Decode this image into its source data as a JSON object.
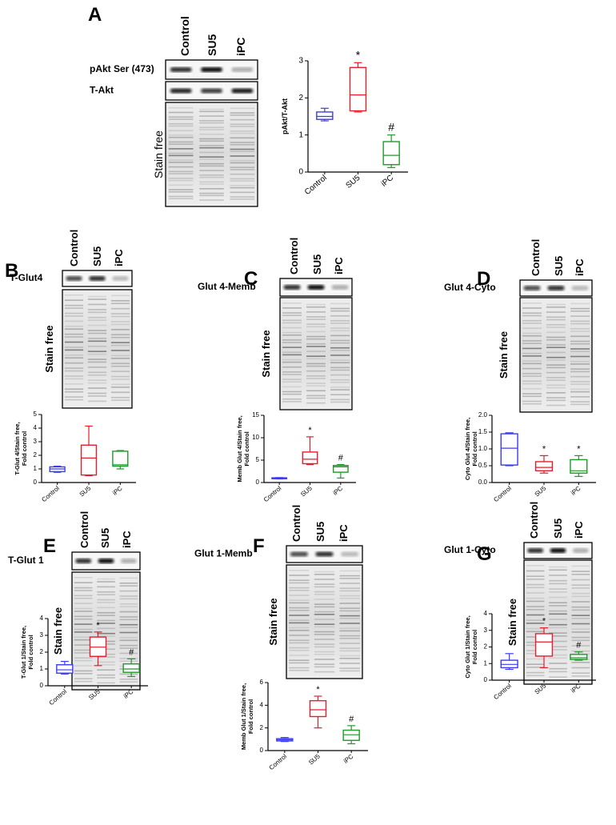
{
  "chart_data": [
    {
      "type": "box",
      "panel": "A",
      "blot": {
        "rows": [
          "pAkt Ser (473)",
          "T-Akt"
        ],
        "stain": "Stain free"
      },
      "ylabel": [
        "pAkt/T-Akt"
      ],
      "categories": [
        "Control",
        "SU5",
        "iPC"
      ],
      "colors": [
        "#3b3bf0",
        "#e51d2c",
        "#1f9a2a"
      ],
      "boxes": [
        {
          "min": 1.38,
          "q1": 1.42,
          "median": 1.5,
          "q3": 1.62,
          "max": 1.72
        },
        {
          "min": 1.62,
          "q1": 1.65,
          "median": 2.08,
          "q3": 2.82,
          "max": 2.95
        },
        {
          "min": 0.12,
          "q1": 0.2,
          "median": 0.45,
          "q3": 0.82,
          "max": 1.0
        }
      ],
      "annotations": [
        null,
        "*",
        "#"
      ],
      "ylim": [
        0,
        3
      ],
      "yticks": [
        0,
        1,
        2,
        3
      ]
    },
    {
      "type": "box",
      "panel": "B",
      "blot": {
        "rows": [
          "T-Glut4"
        ],
        "stain": "Stain free"
      },
      "ylabel": [
        "T-Glut 4/Stain free,",
        "Fold control"
      ],
      "categories": [
        "Control",
        "SU5",
        "iPC"
      ],
      "colors": [
        "#3b3bf0",
        "#e51d2c",
        "#1f9a2a"
      ],
      "boxes": [
        {
          "min": 0.75,
          "q1": 0.8,
          "median": 1.0,
          "q3": 1.15,
          "max": 1.2
        },
        {
          "min": 0.5,
          "q1": 0.55,
          "median": 1.8,
          "q3": 2.75,
          "max": 4.15
        },
        {
          "min": 1.0,
          "q1": 1.2,
          "median": 1.3,
          "q3": 2.3,
          "max": 2.35
        }
      ],
      "annotations": [
        null,
        null,
        null
      ],
      "ylim": [
        0,
        5
      ],
      "yticks": [
        0,
        1,
        2,
        3,
        4,
        5
      ]
    },
    {
      "type": "box",
      "panel": "C",
      "blot": {
        "rows": [
          "Glut 4-Memb"
        ],
        "stain": "Stain free"
      },
      "ylabel": [
        "Memb Glut 4/Stain free,",
        "Fold control"
      ],
      "categories": [
        "Control",
        "SU5",
        "iPC"
      ],
      "colors": [
        "#3b3bf0",
        "#e51d2c",
        "#1f9a2a"
      ],
      "boxes": [
        {
          "min": 0.8,
          "q1": 0.85,
          "median": 0.95,
          "q3": 1.05,
          "max": 1.1
        },
        {
          "min": 4.0,
          "q1": 4.2,
          "median": 5.2,
          "q3": 6.8,
          "max": 10.2
        },
        {
          "min": 1.0,
          "q1": 2.3,
          "median": 3.5,
          "q3": 3.8,
          "max": 4.0
        }
      ],
      "annotations": [
        null,
        "*",
        "#"
      ],
      "ylim": [
        0,
        15
      ],
      "yticks": [
        0,
        5,
        10,
        15
      ]
    },
    {
      "type": "box",
      "panel": "D",
      "blot": {
        "rows": [
          "Glut 4-Cyto"
        ],
        "stain": "Stain free"
      },
      "ylabel": [
        "Cyto Glut 4/Stain free,",
        "Fold control"
      ],
      "categories": [
        "Control",
        "SU5",
        "iPC"
      ],
      "colors": [
        "#3b3bf0",
        "#e51d2c",
        "#1f9a2a"
      ],
      "boxes": [
        {
          "min": 0.5,
          "q1": 0.52,
          "median": 1.02,
          "q3": 1.45,
          "max": 1.48
        },
        {
          "min": 0.28,
          "q1": 0.35,
          "median": 0.45,
          "q3": 0.62,
          "max": 0.8
        },
        {
          "min": 0.18,
          "q1": 0.28,
          "median": 0.35,
          "q3": 0.68,
          "max": 0.8
        }
      ],
      "annotations": [
        null,
        "*",
        "*"
      ],
      "ylim": [
        0,
        2
      ],
      "yticks": [
        {
          "value": 0,
          "label": "0.0"
        },
        0.5,
        {
          "value": 1,
          "label": "1.0"
        },
        1.5,
        {
          "value": 2,
          "label": "2.0"
        }
      ]
    },
    {
      "type": "box",
      "panel": "E",
      "blot": {
        "rows": [
          "T-Glut 1"
        ],
        "stain": "Stain free"
      },
      "ylabel": [
        "T-Glut 1/Stain free,",
        "Fold control"
      ],
      "categories": [
        "Control",
        "SU5",
        "iPC"
      ],
      "colors": [
        "#3b3bf0",
        "#e51d2c",
        "#1f9a2a"
      ],
      "boxes": [
        {
          "min": 0.7,
          "q1": 0.75,
          "median": 0.95,
          "q3": 1.25,
          "max": 1.45
        },
        {
          "min": 1.2,
          "q1": 1.75,
          "median": 2.3,
          "q3": 2.9,
          "max": 3.2
        },
        {
          "min": 0.55,
          "q1": 0.8,
          "median": 1.0,
          "q3": 1.3,
          "max": 1.6
        }
      ],
      "annotations": [
        null,
        "*",
        "#"
      ],
      "ylim": [
        0,
        4
      ],
      "yticks": [
        0,
        1,
        2,
        3,
        4
      ]
    },
    {
      "type": "box",
      "panel": "F",
      "blot": {
        "rows": [
          "Glut 1-Memb"
        ],
        "stain": "Stain free"
      },
      "ylabel": [
        "Memb Glut 1/Stain free,",
        "Fold control"
      ],
      "categories": [
        "Control",
        "SU5",
        "iPC"
      ],
      "colors": [
        "#3b3bf0",
        "#e51d2c",
        "#1f9a2a"
      ],
      "boxes": [
        {
          "min": 0.8,
          "q1": 0.85,
          "median": 0.95,
          "q3": 1.05,
          "max": 1.15
        },
        {
          "min": 2.0,
          "q1": 3.0,
          "median": 3.6,
          "q3": 4.4,
          "max": 4.8
        },
        {
          "min": 0.6,
          "q1": 0.9,
          "median": 1.4,
          "q3": 1.8,
          "max": 2.2
        }
      ],
      "annotations": [
        null,
        "*",
        "#"
      ],
      "ylim": [
        0,
        6
      ],
      "yticks": [
        0,
        2,
        4,
        6
      ]
    },
    {
      "type": "box",
      "panel": "G",
      "blot": {
        "rows": [
          "Glut 1-Cyto"
        ],
        "stain": "Stain free"
      },
      "ylabel": [
        "Cyto Glut 1/Stain free,",
        "Fold control"
      ],
      "categories": [
        "Control",
        "SU5",
        "iPC"
      ],
      "colors": [
        "#3b3bf0",
        "#e51d2c",
        "#1f9a2a"
      ],
      "boxes": [
        {
          "min": 0.65,
          "q1": 0.75,
          "median": 0.95,
          "q3": 1.2,
          "max": 1.6
        },
        {
          "min": 0.75,
          "q1": 1.45,
          "median": 2.3,
          "q3": 2.8,
          "max": 3.15
        },
        {
          "min": 1.2,
          "q1": 1.25,
          "median": 1.35,
          "q3": 1.55,
          "max": 1.7
        }
      ],
      "annotations": [
        null,
        "*",
        "#"
      ],
      "ylim": [
        0,
        4
      ],
      "yticks": [
        0,
        1,
        2,
        3,
        4
      ]
    }
  ]
}
